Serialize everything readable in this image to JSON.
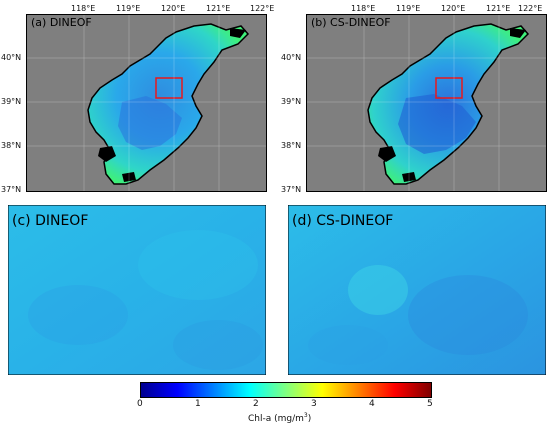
{
  "panels": {
    "a": {
      "title": "(a) DINEOF"
    },
    "b": {
      "title": "(b) CS-DINEOF"
    },
    "c": {
      "title": "(c) DINEOF"
    },
    "d": {
      "title": "(d) CS-DINEOF"
    }
  },
  "axes": {
    "lon_ticks": [
      "118°E",
      "119°E",
      "120°E",
      "121°E",
      "122°E"
    ],
    "lat_ticks": [
      "40°N",
      "39°N",
      "38°N",
      "37°N"
    ]
  },
  "colorbar": {
    "ticks": [
      "0",
      "1",
      "2",
      "3",
      "4",
      "5"
    ],
    "label_prefix": "Chl-a (mg/m",
    "label_sup": "3",
    "label_suffix": ")",
    "colors": [
      "#00008f",
      "#0000ff",
      "#0080ff",
      "#00ffff",
      "#80ff80",
      "#ffff00",
      "#ff8000",
      "#ff0000",
      "#800000"
    ]
  },
  "colors": {
    "land": "#7f7f7f",
    "coast": "#000000",
    "highlight_box": "#e8191d",
    "water_light": "#27c7e6",
    "water_green": "#30f07a",
    "water_deep": "#2b72dc"
  }
}
